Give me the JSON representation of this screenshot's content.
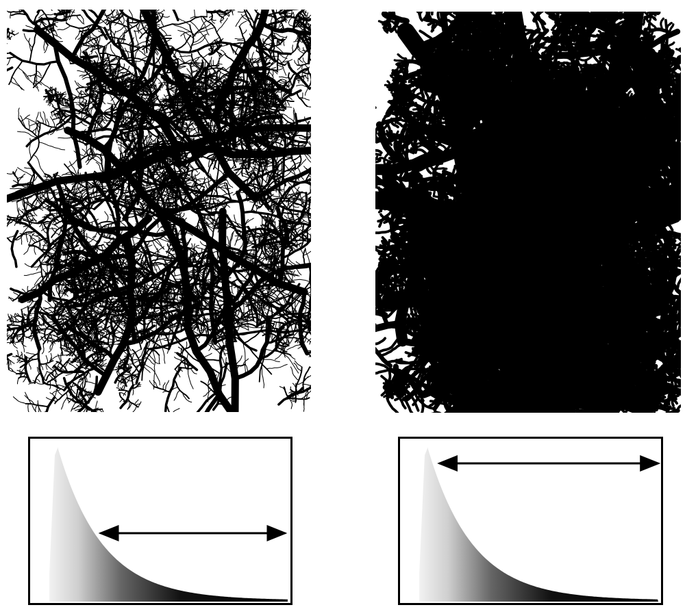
{
  "panels": [
    {
      "name": "left-terrain",
      "description_colors": {
        "channel": "#000000",
        "background": "#ffffff"
      },
      "threshold_fraction": 0.18
    },
    {
      "name": "right-terrain",
      "description_colors": {
        "channel": "#000000",
        "background": "#ffffff"
      },
      "threshold_fraction": 0.05
    }
  ],
  "histograms": [
    {
      "name": "left-histogram",
      "arrow_range_fraction": [
        0.27,
        0.98
      ]
    },
    {
      "name": "right-histogram",
      "arrow_range_fraction": [
        0.15,
        0.99
      ]
    }
  ]
}
